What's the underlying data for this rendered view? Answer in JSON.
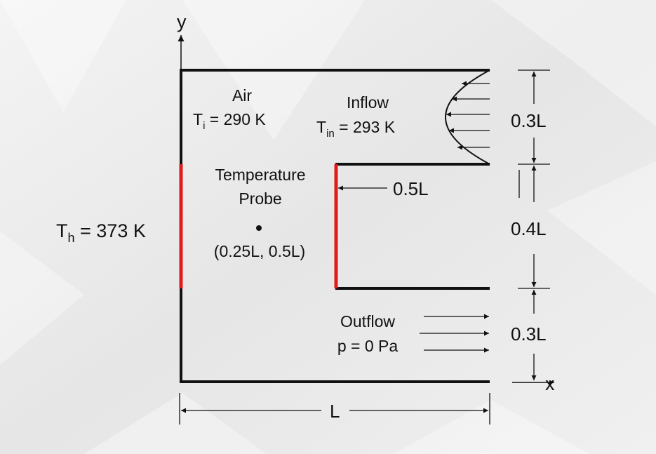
{
  "axes": {
    "x": "x",
    "y": "y"
  },
  "domain": {
    "width_label": "L",
    "inlet_height": "0.3L",
    "block_height": "0.4L",
    "outlet_height": "0.3L",
    "block_depth": "0.5L"
  },
  "air": {
    "label": "Air",
    "temp_sym": "T",
    "temp_sub": "i",
    "temp_val": " = 290 K"
  },
  "inflow": {
    "label": "Inflow",
    "temp_sym": "T",
    "temp_sub": "in",
    "temp_val": " = 293 K"
  },
  "heater": {
    "temp_sym": "T",
    "temp_sub": "h",
    "temp_val": " = 373 K"
  },
  "probe": {
    "line1": "Temperature",
    "line2": "Probe",
    "coords": "(0.25L, 0.5L)"
  },
  "outflow": {
    "label": "Outflow",
    "pressure": "p = 0 Pa"
  },
  "colors": {
    "wall": "#111111",
    "heated": "#e21b1b",
    "background": "#ececec"
  }
}
